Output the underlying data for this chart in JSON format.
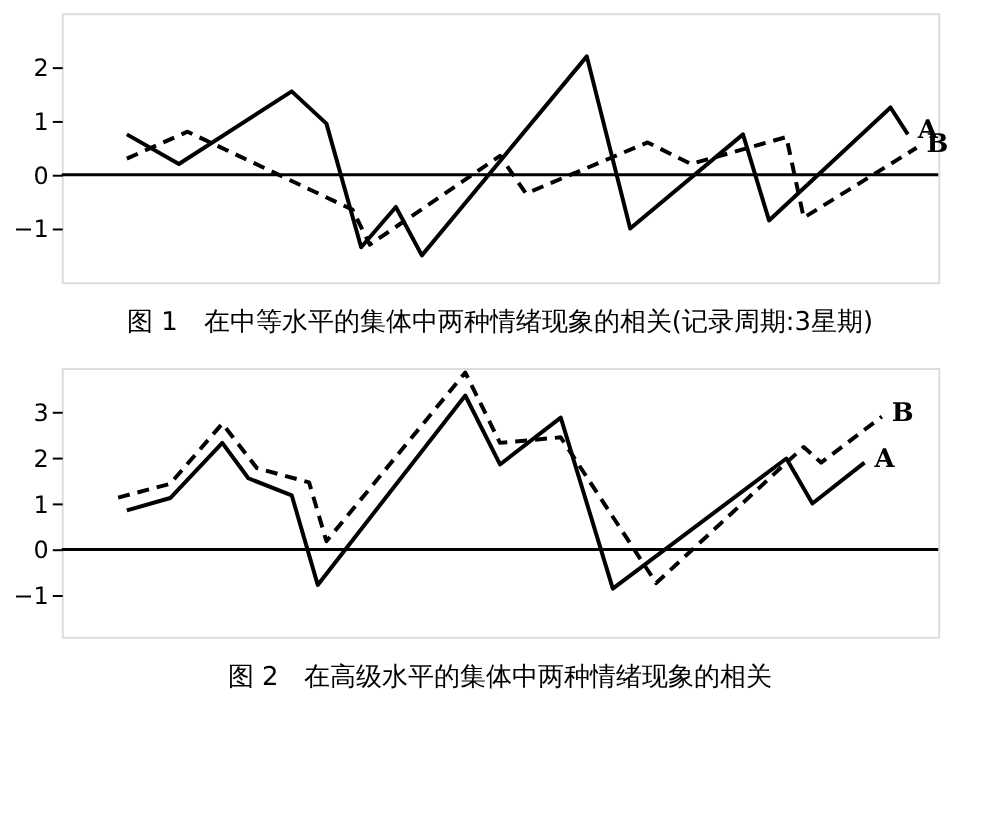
{
  "chart_data": [
    {
      "type": "line",
      "title": "图 1　在中等水平的集体中两种情绪现象的相关(记录周期:3星期)",
      "ylim": [
        -2,
        3
      ],
      "yticks": [
        -1,
        0,
        1,
        2
      ],
      "tick_labels": "y",
      "grid": false,
      "legend": false,
      "marker": "none",
      "categories": [
        null,
        null,
        null,
        null,
        null,
        null,
        null,
        null,
        null,
        null,
        null,
        null,
        null,
        null,
        null,
        null,
        null,
        null,
        null,
        null,
        null,
        null,
        null,
        null,
        null,
        null,
        null,
        null,
        null,
        null,
        null,
        null,
        null,
        null,
        null,
        null,
        null,
        null,
        null,
        null,
        null,
        null,
        null,
        null,
        null,
        null,
        null,
        null,
        null,
        null,
        null,
        null,
        null,
        null,
        null,
        null,
        null,
        null,
        null,
        null,
        null,
        null,
        null,
        null,
        null,
        null,
        null,
        null,
        null,
        null,
        null,
        null,
        null,
        null,
        null,
        null,
        null,
        null,
        null,
        null,
        null,
        null,
        null,
        null,
        null,
        null,
        null,
        null,
        null,
        null,
        null,
        null,
        null,
        null,
        null,
        null,
        null,
        null,
        null,
        null,
        null
      ],
      "ref_lines": [
        {
          "axis": "y",
          "value": 0,
          "color": "#000000",
          "line_style": "solid"
        }
      ],
      "series": [
        {
          "name": "A",
          "color": "#000000",
          "line_style": "solid",
          "values": [
            null,
            null,
            null,
            null,
            null,
            null,
            null,
            0.75,
            null,
            null,
            null,
            null,
            null,
            0.2,
            null,
            null,
            null,
            null,
            null,
            null,
            null,
            null,
            null,
            null,
            null,
            null,
            1.55,
            null,
            null,
            null,
            0.95,
            null,
            null,
            null,
            -1.35,
            null,
            null,
            null,
            -0.6,
            null,
            null,
            -1.5,
            null,
            null,
            null,
            null,
            null,
            null,
            null,
            null,
            null,
            null,
            null,
            null,
            null,
            null,
            null,
            null,
            null,
            null,
            2.2,
            null,
            null,
            null,
            null,
            -1.0,
            null,
            null,
            null,
            null,
            null,
            null,
            null,
            null,
            null,
            null,
            null,
            null,
            0.75,
            null,
            null,
            -0.85,
            null,
            null,
            null,
            null,
            null,
            null,
            null,
            null,
            null,
            null,
            null,
            null,
            null,
            1.25,
            null,
            0.75,
            null,
            null,
            null
          ]
        },
        {
          "name": "B",
          "color": "#000000",
          "line_style": "dashed",
          "values": [
            null,
            null,
            null,
            null,
            null,
            null,
            null,
            0.3,
            null,
            null,
            null,
            null,
            null,
            null,
            0.8,
            null,
            null,
            null,
            null,
            null,
            null,
            null,
            null,
            null,
            null,
            null,
            null,
            null,
            null,
            null,
            null,
            null,
            null,
            -0.65,
            null,
            -1.3,
            null,
            null,
            null,
            null,
            null,
            null,
            null,
            null,
            null,
            null,
            null,
            null,
            null,
            null,
            0.35,
            null,
            null,
            -0.35,
            null,
            null,
            null,
            null,
            null,
            null,
            null,
            null,
            null,
            null,
            null,
            null,
            null,
            0.6,
            null,
            null,
            null,
            null,
            0.2,
            null,
            null,
            null,
            null,
            null,
            null,
            null,
            null,
            null,
            null,
            0.7,
            null,
            -0.8,
            null,
            null,
            null,
            null,
            null,
            null,
            null,
            null,
            null,
            null,
            null,
            null,
            0.5,
            null,
            null
          ]
        }
      ]
    },
    {
      "type": "line",
      "title": "图 2　在高级水平的集体中两种情绪现象的相关",
      "ylim": [
        -1.9,
        3.95
      ],
      "yticks": [
        -1,
        0,
        1,
        2,
        3
      ],
      "tick_labels": "y",
      "grid": false,
      "legend": false,
      "marker": "none",
      "categories": [
        null,
        null,
        null,
        null,
        null,
        null,
        null,
        null,
        null,
        null,
        null,
        null,
        null,
        null,
        null,
        null,
        null,
        null,
        null,
        null,
        null,
        null,
        null,
        null,
        null,
        null,
        null,
        null,
        null,
        null,
        null,
        null,
        null,
        null,
        null,
        null,
        null,
        null,
        null,
        null,
        null,
        null,
        null,
        null,
        null,
        null,
        null,
        null,
        null,
        null,
        null,
        null,
        null,
        null,
        null,
        null,
        null,
        null,
        null,
        null,
        null,
        null,
        null,
        null,
        null,
        null,
        null,
        null,
        null,
        null,
        null,
        null,
        null,
        null,
        null,
        null,
        null,
        null,
        null,
        null,
        null,
        null,
        null,
        null,
        null,
        null,
        null,
        null,
        null,
        null,
        null,
        null,
        null,
        null,
        null,
        null,
        null,
        null,
        null,
        null,
        null
      ],
      "ref_lines": [
        {
          "axis": "y",
          "value": 0,
          "color": "#000000",
          "line_style": "solid"
        }
      ],
      "series": [
        {
          "name": "A",
          "color": "#000000",
          "line_style": "solid",
          "values": [
            null,
            null,
            null,
            null,
            null,
            null,
            null,
            0.85,
            null,
            null,
            null,
            null,
            1.12,
            null,
            null,
            null,
            null,
            null,
            2.32,
            null,
            null,
            1.55,
            null,
            null,
            null,
            null,
            1.18,
            null,
            null,
            -0.77,
            null,
            null,
            null,
            null,
            null,
            null,
            null,
            null,
            null,
            null,
            null,
            null,
            null,
            null,
            null,
            null,
            3.35,
            null,
            null,
            null,
            1.85,
            null,
            null,
            null,
            null,
            null,
            null,
            2.87,
            null,
            null,
            null,
            null,
            null,
            -0.85,
            null,
            null,
            null,
            null,
            null,
            null,
            null,
            null,
            null,
            null,
            null,
            null,
            null,
            null,
            null,
            null,
            null,
            null,
            null,
            1.98,
            null,
            null,
            1.0,
            null,
            null,
            null,
            null,
            null,
            1.89,
            null,
            null,
            null,
            null,
            null,
            null,
            null,
            null
          ]
        },
        {
          "name": "B",
          "color": "#000000",
          "line_style": "dashed",
          "values": [
            null,
            null,
            null,
            null,
            null,
            null,
            1.13,
            null,
            null,
            null,
            null,
            null,
            1.43,
            null,
            null,
            null,
            null,
            null,
            2.74,
            null,
            null,
            null,
            1.77,
            null,
            null,
            null,
            null,
            null,
            1.46,
            null,
            0.18,
            null,
            null,
            null,
            null,
            null,
            null,
            null,
            null,
            null,
            null,
            null,
            null,
            null,
            null,
            null,
            3.85,
            null,
            null,
            null,
            2.32,
            null,
            null,
            null,
            null,
            null,
            null,
            2.44,
            null,
            null,
            null,
            null,
            null,
            null,
            null,
            null,
            null,
            null,
            -0.73,
            null,
            null,
            null,
            null,
            null,
            null,
            null,
            null,
            null,
            null,
            null,
            null,
            null,
            null,
            1.89,
            null,
            2.23,
            null,
            1.89,
            null,
            null,
            null,
            null,
            null,
            null,
            2.89,
            null,
            null,
            null,
            null,
            null,
            null
          ]
        }
      ]
    }
  ]
}
